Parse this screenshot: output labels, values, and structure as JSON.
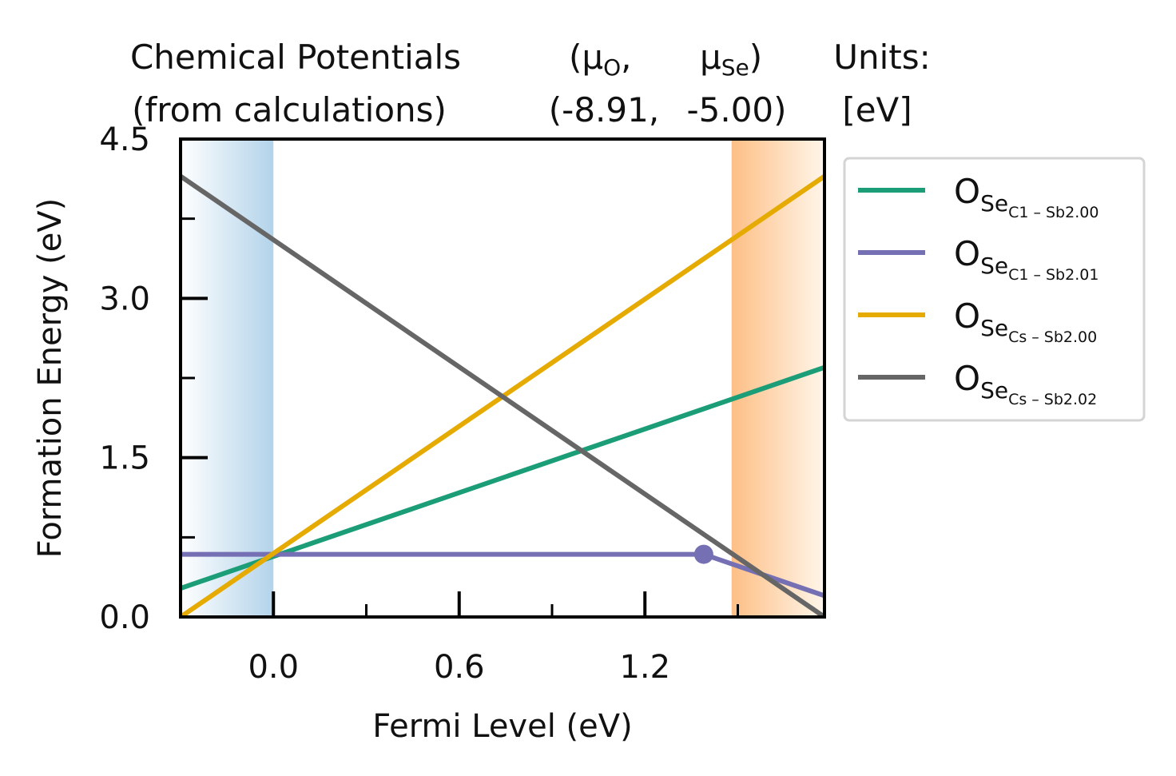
{
  "header": {
    "line1": {
      "part1": "Chemical Potentials",
      "mu_o_open": "(μ",
      "mu_o_sub": "O",
      "mu_o_close": ",",
      "mu_se_open": "μ",
      "mu_se_sub": "Se",
      "mu_se_close": ")",
      "units": "Units:"
    },
    "line2": {
      "part1": "(from calculations)",
      "mu_o_value": "(-8.91,",
      "mu_se_value": "-5.00)",
      "units_value": "[eV]"
    }
  },
  "chart_data": {
    "type": "line",
    "xlabel": "Fermi Level (eV)",
    "ylabel": "Formation Energy (eV)",
    "xlim": [
      -0.3,
      1.78
    ],
    "ylim": [
      0.0,
      4.5
    ],
    "xticks": [
      {
        "v": 0.0,
        "label": "0.0"
      },
      {
        "v": 0.6,
        "label": "0.6"
      },
      {
        "v": 1.2,
        "label": "1.2"
      }
    ],
    "xminor": [
      0.3,
      0.9,
      1.5
    ],
    "yticks": [
      {
        "v": 0.0,
        "label": "0.0"
      },
      {
        "v": 1.5,
        "label": "1.5"
      },
      {
        "v": 3.0,
        "label": "3.0"
      },
      {
        "v": 4.5,
        "label": "4.5"
      }
    ],
    "yminor": [
      0.75,
      2.25,
      3.75
    ],
    "bands": {
      "valence": {
        "x0": -0.3,
        "x1": 0.0,
        "color": "#b3d3ea"
      },
      "conduction": {
        "x0": 1.48,
        "x1": 1.78,
        "color": "#fdbf86"
      }
    },
    "series": [
      {
        "main": "O",
        "sub": "Se",
        "subsub": "C1 – Sb2.00",
        "color": "#1b9e77",
        "points": [
          [
            -0.3,
            0.27
          ],
          [
            1.78,
            2.35
          ]
        ]
      },
      {
        "main": "O",
        "sub": "Se",
        "subsub": "C1 – Sb2.01",
        "color": "#7570b3",
        "points": [
          [
            -0.3,
            0.59
          ],
          [
            1.39,
            0.59
          ],
          [
            1.78,
            0.2
          ]
        ],
        "markers": [
          [
            1.39,
            0.59
          ]
        ]
      },
      {
        "main": "O",
        "sub": "Se",
        "subsub": "Cs – Sb2.00",
        "color": "#e6ab02",
        "points": [
          [
            -0.3,
            0.0
          ],
          [
            1.78,
            4.15
          ]
        ]
      },
      {
        "main": "O",
        "sub": "Se",
        "subsub": "Cs – Sb2.02",
        "color": "#666666",
        "points": [
          [
            -0.3,
            4.15
          ],
          [
            1.78,
            0.0
          ]
        ]
      }
    ]
  }
}
